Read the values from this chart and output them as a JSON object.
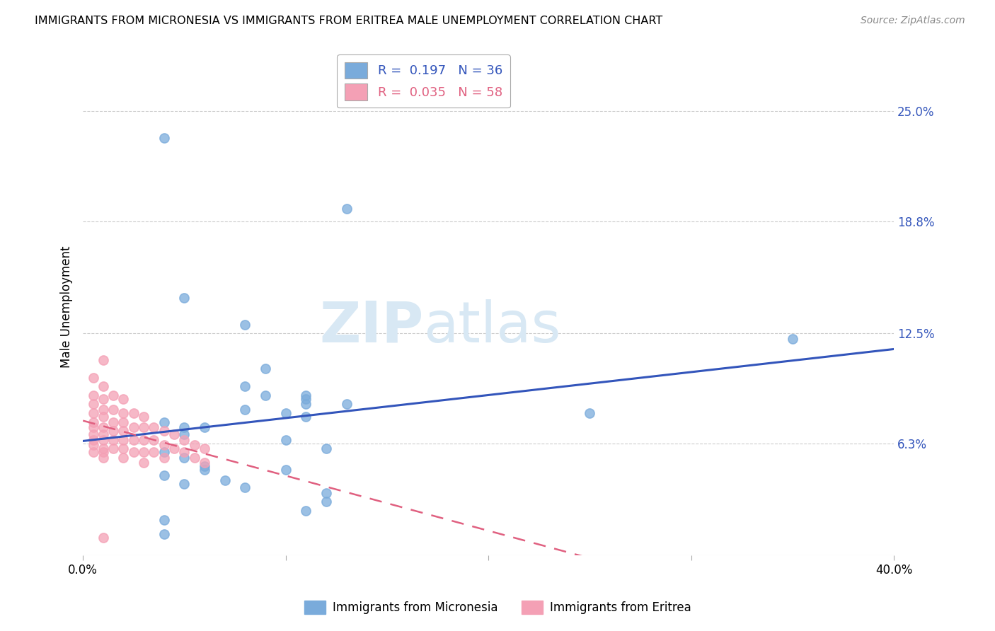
{
  "title": "IMMIGRANTS FROM MICRONESIA VS IMMIGRANTS FROM ERITREA MALE UNEMPLOYMENT CORRELATION CHART",
  "source": "Source: ZipAtlas.com",
  "ylabel": "Male Unemployment",
  "xlim": [
    0.0,
    0.4
  ],
  "ylim": [
    0.0,
    0.28
  ],
  "yticks": [
    0.063,
    0.125,
    0.188,
    0.25
  ],
  "ytick_labels": [
    "6.3%",
    "12.5%",
    "18.8%",
    "25.0%"
  ],
  "xticks": [
    0.0,
    0.1,
    0.2,
    0.3,
    0.4
  ],
  "xtick_labels": [
    "0.0%",
    "",
    "",
    "",
    "40.0%"
  ],
  "micronesia_color": "#7aabdb",
  "eritrea_color": "#f4a0b5",
  "micronesia_line_color": "#3355bb",
  "eritrea_line_color": "#e06080",
  "micronesia_R": "0.197",
  "micronesia_N": "36",
  "eritrea_R": "0.035",
  "eritrea_N": "58",
  "micronesia_x": [
    0.04,
    0.13,
    0.05,
    0.08,
    0.09,
    0.08,
    0.09,
    0.11,
    0.08,
    0.1,
    0.11,
    0.04,
    0.05,
    0.06,
    0.05,
    0.1,
    0.12,
    0.25,
    0.04,
    0.05,
    0.06,
    0.1,
    0.11,
    0.11,
    0.13,
    0.35,
    0.04,
    0.05,
    0.12,
    0.12,
    0.11,
    0.04,
    0.04,
    0.06,
    0.07,
    0.08
  ],
  "micronesia_y": [
    0.235,
    0.195,
    0.145,
    0.13,
    0.105,
    0.095,
    0.09,
    0.085,
    0.082,
    0.08,
    0.078,
    0.075,
    0.072,
    0.072,
    0.068,
    0.065,
    0.06,
    0.08,
    0.058,
    0.055,
    0.05,
    0.048,
    0.09,
    0.088,
    0.085,
    0.122,
    0.045,
    0.04,
    0.035,
    0.03,
    0.025,
    0.02,
    0.012,
    0.048,
    0.042,
    0.038
  ],
  "eritrea_x": [
    0.005,
    0.005,
    0.005,
    0.005,
    0.005,
    0.005,
    0.005,
    0.005,
    0.005,
    0.005,
    0.01,
    0.01,
    0.01,
    0.01,
    0.01,
    0.01,
    0.01,
    0.01,
    0.01,
    0.01,
    0.01,
    0.015,
    0.015,
    0.015,
    0.015,
    0.015,
    0.015,
    0.02,
    0.02,
    0.02,
    0.02,
    0.02,
    0.02,
    0.02,
    0.025,
    0.025,
    0.025,
    0.025,
    0.03,
    0.03,
    0.03,
    0.03,
    0.03,
    0.035,
    0.035,
    0.035,
    0.04,
    0.04,
    0.04,
    0.045,
    0.045,
    0.05,
    0.05,
    0.055,
    0.055,
    0.06,
    0.06,
    0.01
  ],
  "eritrea_y": [
    0.1,
    0.09,
    0.085,
    0.08,
    0.075,
    0.072,
    0.068,
    0.065,
    0.062,
    0.058,
    0.11,
    0.095,
    0.088,
    0.082,
    0.078,
    0.072,
    0.068,
    0.065,
    0.06,
    0.058,
    0.055,
    0.09,
    0.082,
    0.075,
    0.07,
    0.065,
    0.06,
    0.088,
    0.08,
    0.075,
    0.07,
    0.065,
    0.06,
    0.055,
    0.08,
    0.072,
    0.065,
    0.058,
    0.078,
    0.072,
    0.065,
    0.058,
    0.052,
    0.072,
    0.065,
    0.058,
    0.07,
    0.062,
    0.055,
    0.068,
    0.06,
    0.065,
    0.058,
    0.062,
    0.055,
    0.06,
    0.052,
    0.01
  ]
}
